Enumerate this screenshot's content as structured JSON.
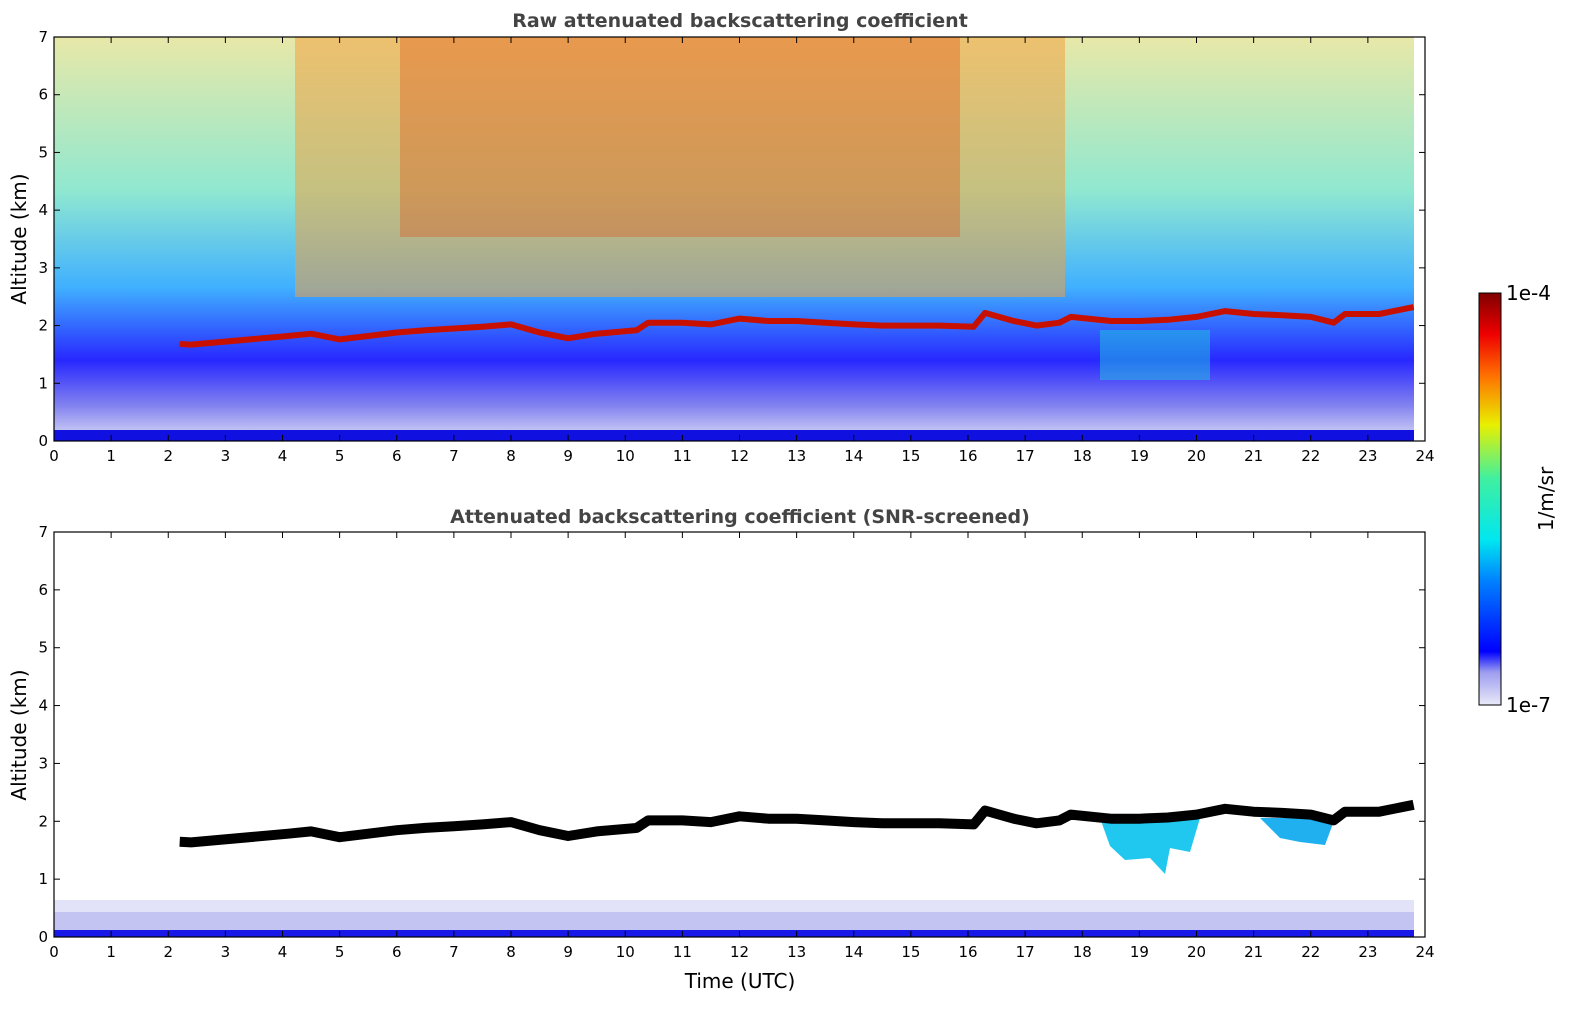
{
  "chart_data": [
    {
      "type": "heatmap",
      "title": "Raw attenuated backscattering coefficient",
      "xlabel": "",
      "ylabel": "Altitude (km)",
      "xlim": [
        0,
        24
      ],
      "ylim": [
        0,
        7
      ],
      "xticks": [
        "0",
        "1",
        "2",
        "3",
        "4",
        "5",
        "6",
        "7",
        "8",
        "9",
        "10",
        "11",
        "12",
        "13",
        "14",
        "15",
        "16",
        "17",
        "18",
        "19",
        "20",
        "21",
        "22",
        "23",
        "24"
      ],
      "yticks": [
        "0",
        "1",
        "2",
        "3",
        "4",
        "5",
        "6",
        "7"
      ],
      "layer_top_km": [
        [
          2.2,
          1.68
        ],
        [
          2.4,
          1.67
        ],
        [
          4.1,
          1.82
        ],
        [
          4.5,
          1.86
        ],
        [
          5.0,
          1.76
        ],
        [
          5.5,
          1.82
        ],
        [
          6.0,
          1.88
        ],
        [
          6.5,
          1.92
        ],
        [
          7.0,
          1.95
        ],
        [
          7.5,
          1.98
        ],
        [
          8.0,
          2.02
        ],
        [
          8.5,
          1.88
        ],
        [
          9.0,
          1.78
        ],
        [
          9.5,
          1.86
        ],
        [
          10.2,
          1.92
        ],
        [
          10.4,
          2.05
        ],
        [
          11.0,
          2.05
        ],
        [
          11.5,
          2.02
        ],
        [
          12.0,
          2.12
        ],
        [
          12.5,
          2.08
        ],
        [
          13.0,
          2.08
        ],
        [
          13.5,
          2.05
        ],
        [
          14.0,
          2.02
        ],
        [
          14.5,
          2.0
        ],
        [
          15.0,
          2.0
        ],
        [
          15.5,
          2.0
        ],
        [
          16.1,
          1.98
        ],
        [
          16.3,
          2.22
        ],
        [
          16.8,
          2.08
        ],
        [
          17.2,
          2.0
        ],
        [
          17.6,
          2.05
        ],
        [
          17.8,
          2.15
        ],
        [
          18.5,
          2.08
        ],
        [
          19.0,
          2.08
        ],
        [
          19.5,
          2.1
        ],
        [
          20.0,
          2.15
        ],
        [
          20.5,
          2.25
        ],
        [
          21.0,
          2.2
        ],
        [
          21.5,
          2.18
        ],
        [
          22.0,
          2.15
        ],
        [
          22.4,
          2.05
        ],
        [
          22.6,
          2.2
        ],
        [
          23.2,
          2.2
        ],
        [
          23.8,
          2.32
        ]
      ],
      "grid": false,
      "colormap": "jet",
      "colorbar": {
        "label": "1/m/sr",
        "min_label": "1e-7",
        "max_label": "1e-4",
        "scale": "log"
      }
    },
    {
      "type": "heatmap",
      "title": "Attenuated backscattering coefficient (SNR-screened)",
      "xlabel": "Time (UTC)",
      "ylabel": "Altitude (km)",
      "xlim": [
        0,
        24
      ],
      "ylim": [
        0,
        7
      ],
      "xticks": [
        "0",
        "1",
        "2",
        "3",
        "4",
        "5",
        "6",
        "7",
        "8",
        "9",
        "10",
        "11",
        "12",
        "13",
        "14",
        "15",
        "16",
        "17",
        "18",
        "19",
        "20",
        "21",
        "22",
        "23",
        "24"
      ],
      "yticks": [
        "0",
        "1",
        "2",
        "3",
        "4",
        "5",
        "6",
        "7"
      ],
      "grid": false,
      "colormap": "jet",
      "colorbar": {
        "label": "1/m/sr",
        "min_label": "1e-7",
        "max_label": "1e-4",
        "scale": "log"
      }
    }
  ],
  "colors": {
    "background": "#ffffff",
    "frame": "#000000",
    "title": "#444444"
  }
}
